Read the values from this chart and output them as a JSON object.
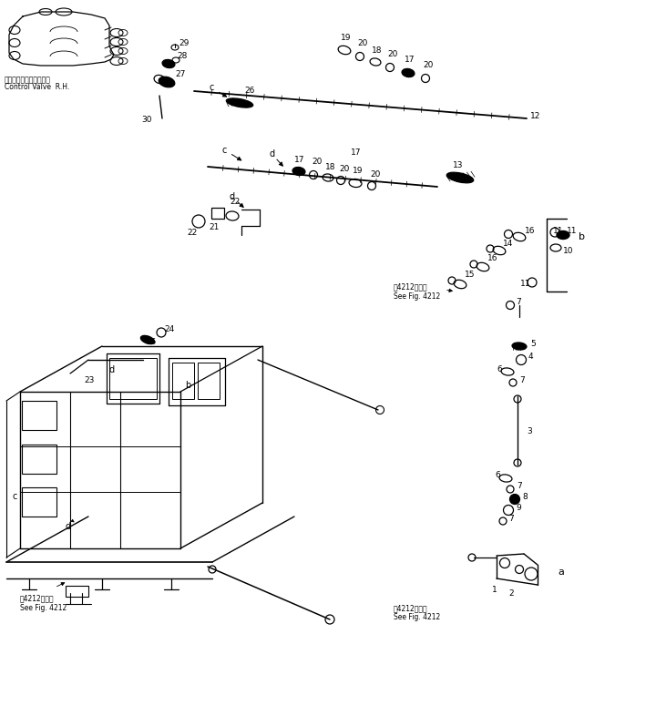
{
  "bg_color": "#ffffff",
  "line_color": "#000000",
  "control_valve_label_jp": "コントロールバルブ　右",
  "control_valve_label_en": "Control Valve  R.H.",
  "see_fig_jp": "笥4212図参照",
  "see_fig_en": "See Fig. 4212",
  "fig_size": [
    7.2,
    7.75
  ],
  "dpi": 100
}
